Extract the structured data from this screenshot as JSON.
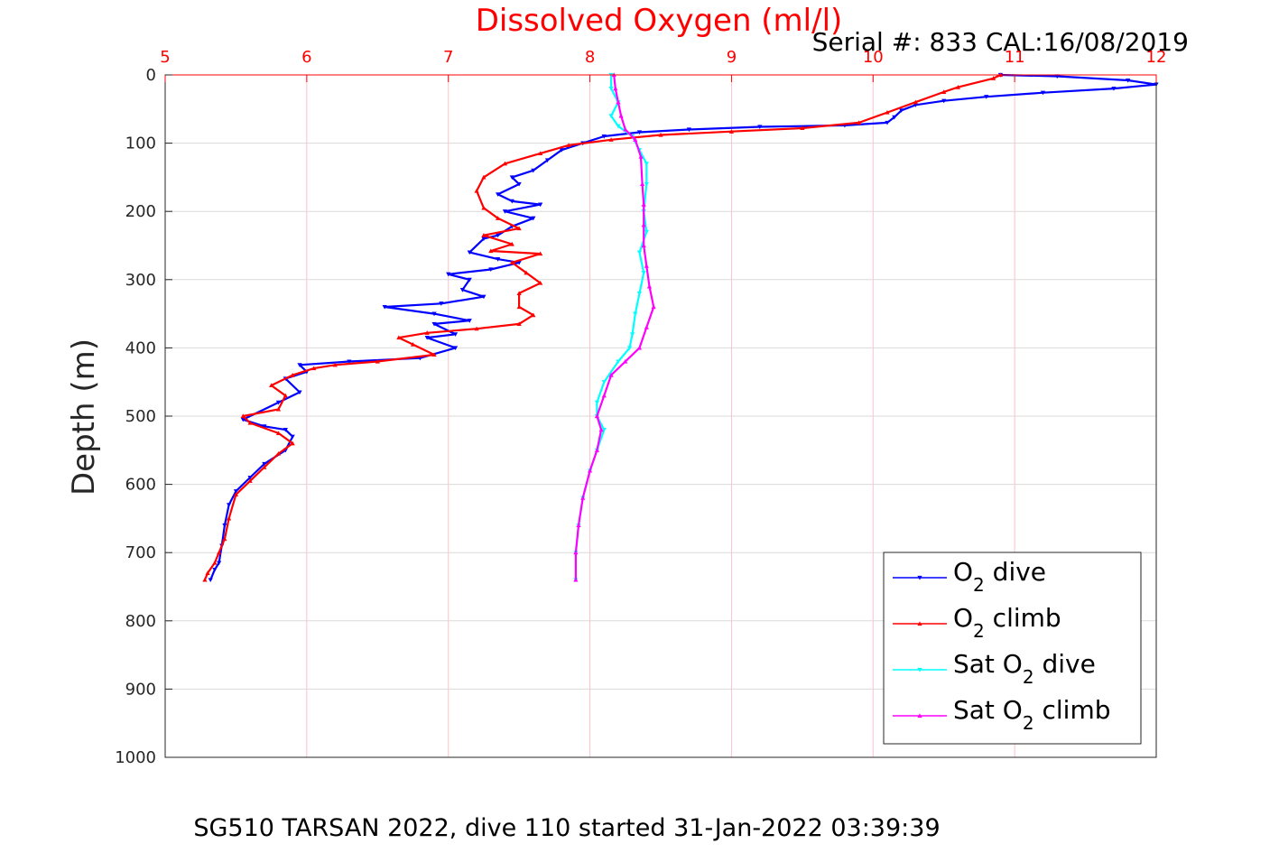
{
  "chart_data": {
    "type": "line",
    "xlabel": "Dissolved Oxygen (ml/l)",
    "ylabel": "Depth (m)",
    "serial_text": "Serial #: 833  CAL:16/08/2019",
    "caption": "SG510 TARSAN 2022, dive 110 started 31-Jan-2022 03:39:39",
    "xlim": [
      5,
      12
    ],
    "ylim": [
      0,
      1000
    ],
    "y_reversed": true,
    "x_axis_position": "top",
    "xticks": [
      "5",
      "6",
      "7",
      "8",
      "9",
      "10",
      "11",
      "12"
    ],
    "yticks": [
      "0",
      "100",
      "200",
      "300",
      "400",
      "500",
      "600",
      "700",
      "800",
      "900",
      "1000"
    ],
    "grid": true,
    "legend_position": "bottom-right",
    "series": [
      {
        "name": "O2 dive",
        "legend_main": "O",
        "legend_sub": "2",
        "legend_rest": " dive",
        "color": "#0000ff",
        "marker": "triangle-down",
        "points": [
          [
            10.9,
            0
          ],
          [
            11.3,
            2
          ],
          [
            11.8,
            8
          ],
          [
            12.0,
            14
          ],
          [
            11.7,
            20
          ],
          [
            11.2,
            26
          ],
          [
            10.8,
            32
          ],
          [
            10.5,
            38
          ],
          [
            10.3,
            44
          ],
          [
            10.2,
            52
          ],
          [
            10.15,
            62
          ],
          [
            10.1,
            70
          ],
          [
            9.8,
            74
          ],
          [
            9.2,
            76
          ],
          [
            8.7,
            80
          ],
          [
            8.35,
            84
          ],
          [
            8.1,
            90
          ],
          [
            7.95,
            100
          ],
          [
            7.8,
            110
          ],
          [
            7.7,
            125
          ],
          [
            7.6,
            140
          ],
          [
            7.45,
            150
          ],
          [
            7.5,
            160
          ],
          [
            7.35,
            175
          ],
          [
            7.45,
            185
          ],
          [
            7.65,
            190
          ],
          [
            7.4,
            200
          ],
          [
            7.6,
            210
          ],
          [
            7.45,
            222
          ],
          [
            7.35,
            235
          ],
          [
            7.25,
            240
          ],
          [
            7.15,
            260
          ],
          [
            7.35,
            270
          ],
          [
            7.5,
            275
          ],
          [
            7.3,
            285
          ],
          [
            7.0,
            292
          ],
          [
            7.15,
            300
          ],
          [
            7.1,
            315
          ],
          [
            7.25,
            325
          ],
          [
            6.95,
            335
          ],
          [
            6.55,
            340
          ],
          [
            6.9,
            350
          ],
          [
            7.15,
            360
          ],
          [
            6.9,
            365
          ],
          [
            7.05,
            380
          ],
          [
            6.85,
            385
          ],
          [
            7.05,
            400
          ],
          [
            6.8,
            415
          ],
          [
            6.3,
            420
          ],
          [
            5.95,
            425
          ],
          [
            6.0,
            435
          ],
          [
            5.85,
            445
          ],
          [
            5.95,
            465
          ],
          [
            5.8,
            480
          ],
          [
            5.55,
            505
          ],
          [
            5.7,
            515
          ],
          [
            5.85,
            520
          ],
          [
            5.9,
            530
          ],
          [
            5.85,
            550
          ],
          [
            5.7,
            570
          ],
          [
            5.6,
            590
          ],
          [
            5.5,
            610
          ],
          [
            5.45,
            630
          ],
          [
            5.42,
            660
          ],
          [
            5.4,
            690
          ],
          [
            5.38,
            715
          ],
          [
            5.35,
            725
          ],
          [
            5.32,
            740
          ]
        ]
      },
      {
        "name": "O2 climb",
        "legend_main": "O",
        "legend_sub": "2",
        "legend_rest": " climb",
        "color": "#ff0000",
        "marker": "triangle-up",
        "points": [
          [
            5.28,
            740
          ],
          [
            5.3,
            730
          ],
          [
            5.35,
            715
          ],
          [
            5.38,
            700
          ],
          [
            5.42,
            680
          ],
          [
            5.45,
            650
          ],
          [
            5.5,
            615
          ],
          [
            5.6,
            595
          ],
          [
            5.7,
            575
          ],
          [
            5.8,
            555
          ],
          [
            5.9,
            540
          ],
          [
            5.8,
            525
          ],
          [
            5.6,
            510
          ],
          [
            5.55,
            500
          ],
          [
            5.8,
            490
          ],
          [
            5.85,
            470
          ],
          [
            5.75,
            455
          ],
          [
            5.9,
            440
          ],
          [
            6.05,
            430
          ],
          [
            6.2,
            425
          ],
          [
            6.5,
            420
          ],
          [
            6.9,
            410
          ],
          [
            6.75,
            395
          ],
          [
            6.65,
            385
          ],
          [
            6.85,
            378
          ],
          [
            7.2,
            372
          ],
          [
            7.5,
            365
          ],
          [
            7.6,
            352
          ],
          [
            7.5,
            340
          ],
          [
            7.5,
            320
          ],
          [
            7.65,
            305
          ],
          [
            7.55,
            290
          ],
          [
            7.45,
            275
          ],
          [
            7.65,
            262
          ],
          [
            7.3,
            258
          ],
          [
            7.45,
            248
          ],
          [
            7.25,
            235
          ],
          [
            7.5,
            225
          ],
          [
            7.35,
            210
          ],
          [
            7.25,
            195
          ],
          [
            7.2,
            170
          ],
          [
            7.25,
            150
          ],
          [
            7.4,
            130
          ],
          [
            7.65,
            115
          ],
          [
            7.85,
            103
          ],
          [
            8.15,
            95
          ],
          [
            8.5,
            88
          ],
          [
            9.0,
            83
          ],
          [
            9.5,
            78
          ],
          [
            9.9,
            70
          ],
          [
            10.1,
            55
          ],
          [
            10.3,
            40
          ],
          [
            10.5,
            25
          ],
          [
            10.6,
            18
          ],
          [
            10.85,
            5
          ],
          [
            10.9,
            0
          ]
        ]
      },
      {
        "name": "Sat O2 dive",
        "legend_main": "Sat O",
        "legend_sub": "2",
        "legend_rest": " dive",
        "color": "#00ffff",
        "marker": "triangle-down",
        "points": [
          [
            8.15,
            0
          ],
          [
            8.15,
            20
          ],
          [
            8.2,
            40
          ],
          [
            8.15,
            60
          ],
          [
            8.2,
            75
          ],
          [
            8.3,
            90
          ],
          [
            8.35,
            110
          ],
          [
            8.4,
            130
          ],
          [
            8.4,
            160
          ],
          [
            8.38,
            200
          ],
          [
            8.4,
            230
          ],
          [
            8.35,
            260
          ],
          [
            8.38,
            290
          ],
          [
            8.35,
            320
          ],
          [
            8.32,
            350
          ],
          [
            8.3,
            380
          ],
          [
            8.28,
            400
          ],
          [
            8.2,
            420
          ],
          [
            8.1,
            450
          ],
          [
            8.05,
            480
          ],
          [
            8.05,
            500
          ],
          [
            8.1,
            520
          ],
          [
            8.05,
            550
          ],
          [
            8.0,
            580
          ],
          [
            7.95,
            620
          ],
          [
            7.92,
            660
          ],
          [
            7.9,
            700
          ],
          [
            7.9,
            740
          ]
        ]
      },
      {
        "name": "Sat O2 climb",
        "legend_main": "Sat O",
        "legend_sub": "2",
        "legend_rest": " climb",
        "color": "#ff00ff",
        "marker": "triangle-up",
        "points": [
          [
            7.9,
            740
          ],
          [
            7.9,
            700
          ],
          [
            7.92,
            660
          ],
          [
            7.95,
            620
          ],
          [
            8.0,
            580
          ],
          [
            8.05,
            550
          ],
          [
            8.08,
            520
          ],
          [
            8.05,
            500
          ],
          [
            8.1,
            470
          ],
          [
            8.15,
            440
          ],
          [
            8.25,
            420
          ],
          [
            8.35,
            400
          ],
          [
            8.4,
            370
          ],
          [
            8.45,
            340
          ],
          [
            8.42,
            310
          ],
          [
            8.4,
            280
          ],
          [
            8.38,
            250
          ],
          [
            8.38,
            220
          ],
          [
            8.38,
            190
          ],
          [
            8.37,
            160
          ],
          [
            8.36,
            120
          ],
          [
            8.32,
            95
          ],
          [
            8.25,
            80
          ],
          [
            8.22,
            60
          ],
          [
            8.2,
            40
          ],
          [
            8.18,
            20
          ],
          [
            8.17,
            0
          ]
        ]
      }
    ]
  }
}
